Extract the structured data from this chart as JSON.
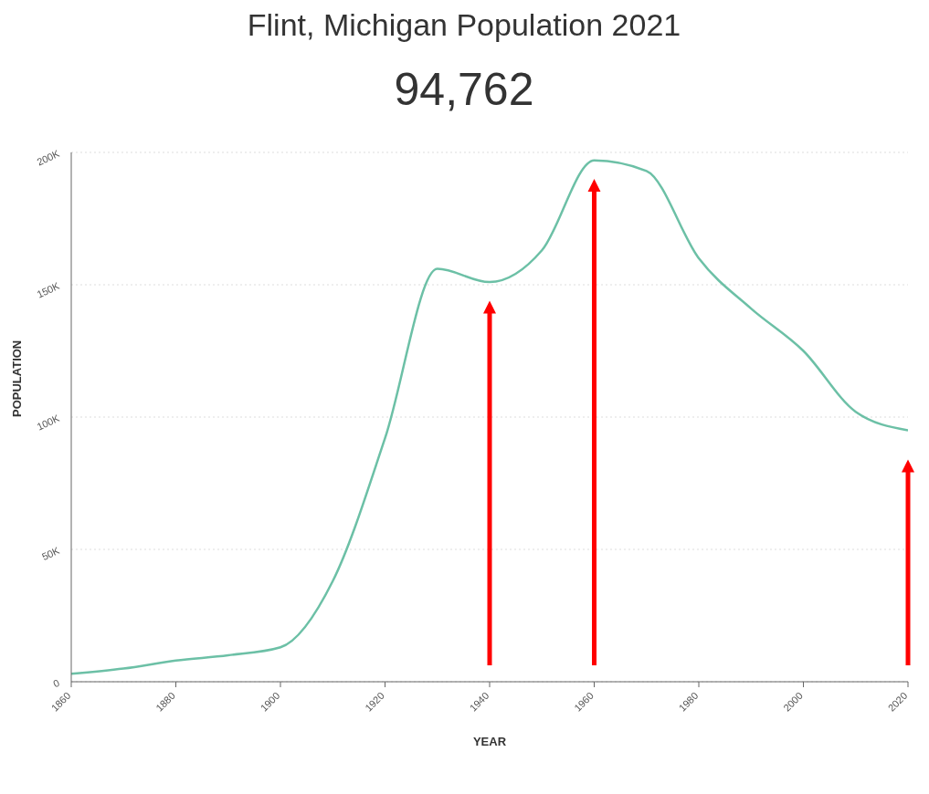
{
  "chart_data": {
    "type": "line",
    "title": "Flint, Michigan Population 2021",
    "subtitle": "94,762",
    "xlabel": "YEAR",
    "ylabel": "POPULATION",
    "x": [
      1860,
      1870,
      1880,
      1890,
      1900,
      1910,
      1920,
      1930,
      1940,
      1950,
      1960,
      1970,
      1980,
      1990,
      2000,
      2010,
      2020
    ],
    "series": [
      {
        "color": "#6cc0a6",
        "values": [
          3000,
          5000,
          8000,
          10000,
          13000,
          38000,
          92000,
          156000,
          151000,
          163000,
          197000,
          193000,
          160000,
          141000,
          125000,
          102000,
          95000
        ]
      }
    ],
    "xlim": [
      1860,
      2020
    ],
    "xticks": [
      1860,
      1880,
      1900,
      1920,
      1940,
      1960,
      1980,
      2000,
      2020
    ],
    "ylim": [
      0,
      200000
    ],
    "yticks": [
      0,
      {
        "value": 50000,
        "label": "50K"
      },
      {
        "value": 100000,
        "label": "100K"
      },
      {
        "value": 150000,
        "label": "150K"
      },
      {
        "value": 200000,
        "label": "200K"
      }
    ],
    "grid": "y",
    "marker": "none",
    "line_style": "solid"
  }
}
